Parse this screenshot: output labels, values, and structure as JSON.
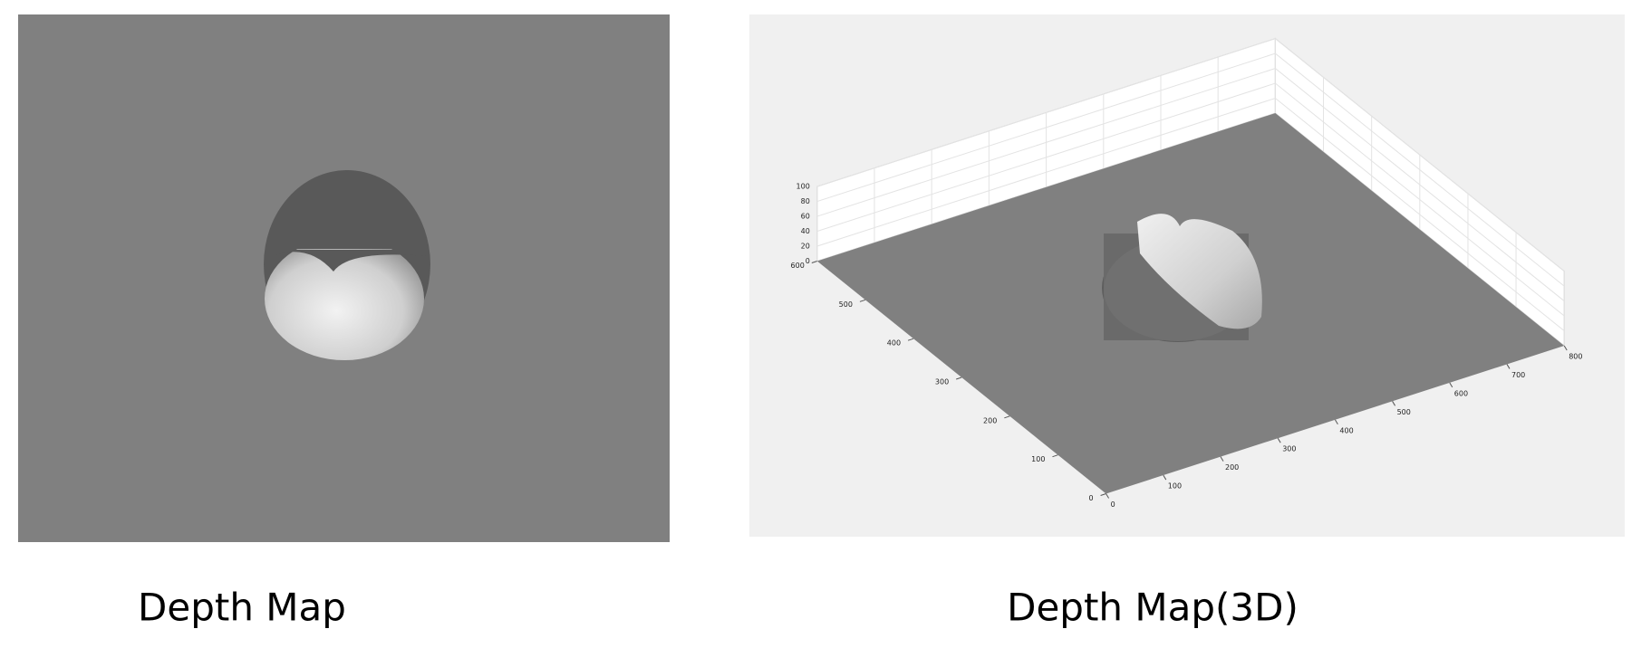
{
  "left_panel": {
    "caption": "Depth Map"
  },
  "right_panel": {
    "caption": "Depth Map(3D)",
    "xticks": [
      0,
      100,
      200,
      300,
      400,
      500,
      600,
      700,
      800
    ],
    "yticks": [
      0,
      100,
      200,
      300,
      400,
      500,
      600
    ],
    "zticks": [
      0,
      20,
      40,
      60,
      80,
      100
    ]
  }
}
